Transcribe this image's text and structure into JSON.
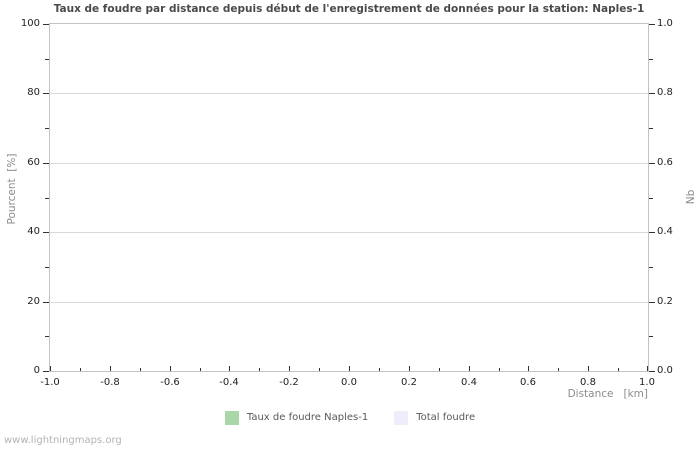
{
  "chart_data": {
    "type": "line",
    "title": "Taux de foudre par distance depuis début de l'enregistrement de données pour la station: Naples-1",
    "xlabel": "Distance   [km]",
    "ylabel_left": "Pourcent  [%]",
    "ylabel_right": "Nb",
    "xlim": [
      -1.0,
      1.0
    ],
    "x_major_step": 0.2,
    "x_minor_step": 0.1,
    "ylim_left": [
      0,
      100
    ],
    "y_left_major_step": 20,
    "y_left_minor_step": 10,
    "ylim_right": [
      0.0,
      1.0
    ],
    "y_right_major_step": 0.2,
    "y_right_minor_step": 0.1,
    "grid": "horizontal major gridlines only, no vertical gridlines",
    "legend_position": "bottom-center",
    "series": [
      {
        "name": "Taux de foudre Naples-1",
        "color": "#a9d7a9",
        "values": []
      },
      {
        "name": "Total foudre",
        "color": "#ededfb",
        "values": []
      }
    ]
  },
  "watermark": "www.lightningmaps.org",
  "colors": {
    "plot_border": "#c3c3c3",
    "gridline": "#d9d9d9",
    "tick": "#333333",
    "tick_label": "#222222",
    "axis_label": "#8c8c8c",
    "legend_label": "#595959",
    "title": "#4a4a4a",
    "watermark": "#b3b3b3",
    "background": "#ffffff"
  }
}
